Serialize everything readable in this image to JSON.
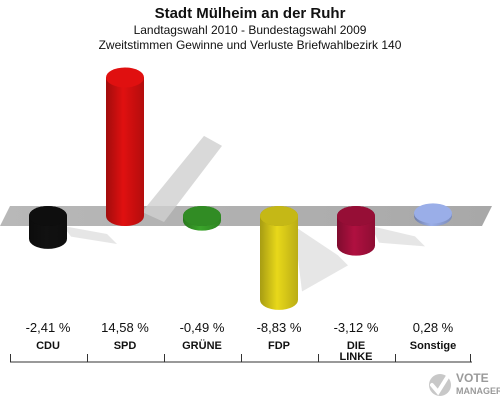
{
  "header": {
    "title": "Stadt Mülheim an der Ruhr",
    "subtitle1": "Landtagswahl 2010 - Bundestagswahl 2009",
    "subtitle2": "Zweitstimmen Gewinne und Verluste Briefwahlbezirk 140"
  },
  "chart_data": {
    "type": "bar",
    "categories": [
      "CDU",
      "SPD",
      "GRÜNE",
      "FDP",
      "DIE LINKE",
      "Sonstige"
    ],
    "value_labels": [
      "-2,41 %",
      "14,58 %",
      "-0,49 %",
      "-8,83 %",
      "-3,12 %",
      "0,28 %"
    ],
    "values": [
      -2.41,
      14.58,
      -0.49,
      -8.83,
      -3.12,
      0.28
    ],
    "colors": [
      "#111111",
      "#e01010",
      "#3aa52a",
      "#e8d81a",
      "#b01040",
      "#9aaee8"
    ],
    "unit": "%",
    "title": "",
    "xlabel": "",
    "ylabel": ""
  },
  "logo": {
    "line1": "VOTE",
    "line2": "MANAGER"
  }
}
